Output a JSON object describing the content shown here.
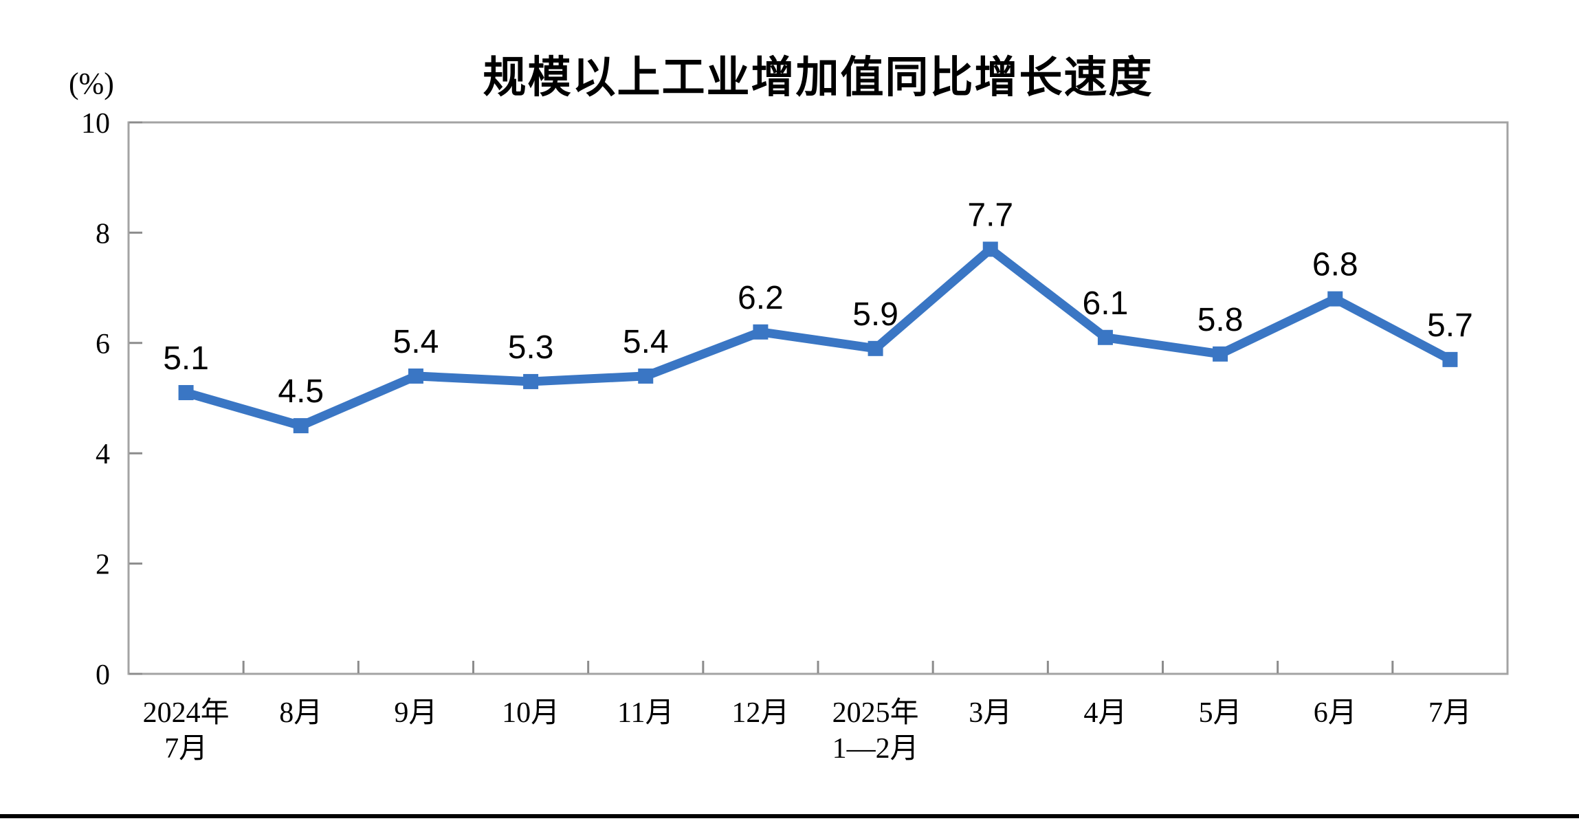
{
  "page": {
    "background_color": "#ffffff",
    "bottom_rule_color": "#000000"
  },
  "chart_data": {
    "type": "line",
    "title": "规模以上工业增加值同比增长速度",
    "unit_label": "(%)",
    "categories": [
      "2024年\n7月",
      "8月",
      "9月",
      "10月",
      "11月",
      "12月",
      "2025年\n1—2月",
      "3月",
      "4月",
      "5月",
      "6月",
      "7月"
    ],
    "series": [
      {
        "name": "规模以上工业增加值同比增长速度",
        "values": [
          5.1,
          4.5,
          5.4,
          5.3,
          5.4,
          6.2,
          5.9,
          7.7,
          6.1,
          5.8,
          6.8,
          5.7
        ]
      }
    ],
    "data_labels": [
      "5.1",
      "4.5",
      "5.4",
      "5.3",
      "5.4",
      "6.2",
      "5.9",
      "7.7",
      "6.1",
      "5.8",
      "6.8",
      "5.7"
    ],
    "xlabel": "",
    "ylabel": "(%)",
    "ylim": [
      0,
      10
    ],
    "yticks": [
      0,
      2,
      4,
      6,
      8,
      10
    ],
    "grid": false,
    "legend": false,
    "legend_position": "none",
    "marker": "square",
    "colors": {
      "line": "#3A76C4",
      "marker": "#3A76C4",
      "plot_border": "#A3A3A3",
      "tick": "#8C8C8C",
      "text": "#000000"
    }
  }
}
